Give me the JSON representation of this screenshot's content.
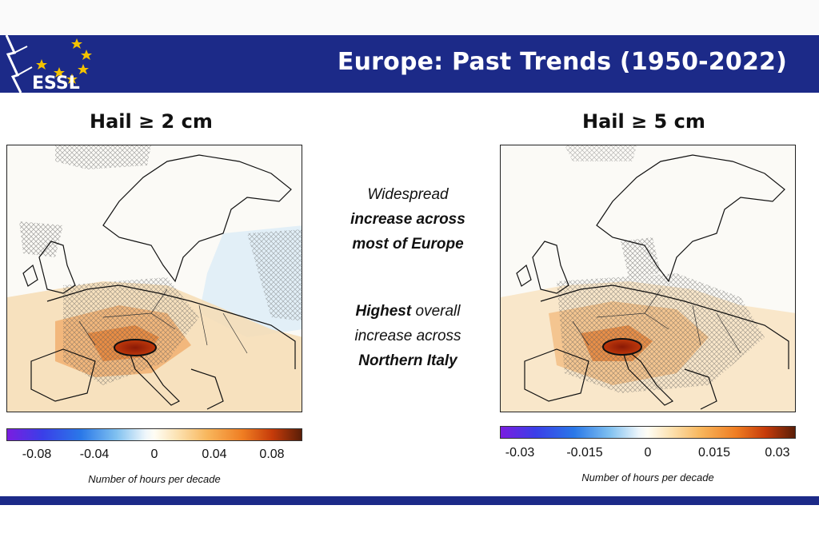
{
  "header": {
    "title": "Europe: Past Trends (1950-2022)",
    "logo_text": "ESSL"
  },
  "left_map": {
    "title": "Hail ≥ 2 cm",
    "colorbar_ticks": [
      "-0.08",
      "-0.04",
      "0",
      "0.04",
      "0.08"
    ],
    "colorbar_caption": "Number of hours per decade"
  },
  "right_map": {
    "title": "Hail ≥ 5 cm",
    "colorbar_ticks": [
      "-0.03",
      "-0.015",
      "0",
      "0.015",
      "0.03"
    ],
    "colorbar_caption": "Number of hours per decade"
  },
  "center": {
    "line1": "Widespread",
    "line2": "increase across",
    "line3": "most of Europe",
    "line4_bold": "Highest",
    "line4_rest": " overall",
    "line5": "increase across",
    "line6": "Northern Italy"
  },
  "colors": {
    "header_bg": "#1c2a88",
    "colorbar_min": "#7a1de0",
    "colorbar_mid": "#fffdf4",
    "colorbar_max": "#5a1e08"
  }
}
